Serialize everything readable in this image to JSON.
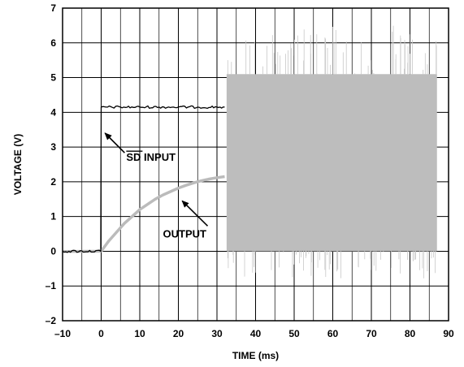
{
  "chart_data": {
    "type": "line",
    "title": "",
    "xlabel": "TIME (ms)",
    "ylabel": "VOLTAGE (V)",
    "xlim": [
      -10,
      90
    ],
    "ylim": [
      -2,
      7
    ],
    "x_ticks": [
      -10,
      0,
      10,
      20,
      30,
      40,
      50,
      60,
      70,
      80,
      90
    ],
    "x_tick_labels": [
      "–10",
      "0",
      "10",
      "20",
      "30",
      "40",
      "50",
      "60",
      "70",
      "80",
      "90"
    ],
    "y_ticks": [
      -2,
      -1,
      0,
      1,
      2,
      3,
      4,
      5,
      6,
      7
    ],
    "y_tick_labels": [
      "–2",
      "–1",
      "0",
      "1",
      "2",
      "3",
      "4",
      "5",
      "6",
      "7"
    ],
    "grid": true,
    "colors": {
      "sd_input": "#000000",
      "output": "#bbbbbb"
    },
    "series": [
      {
        "key": "sd_input",
        "x": [
          -10,
          -0.1,
          0,
          5,
          10,
          15,
          20,
          25,
          30,
          32
        ],
        "y": [
          0,
          0,
          4.15,
          4.15,
          4.15,
          4.15,
          4.15,
          4.15,
          4.15,
          4.15
        ]
      },
      {
        "key": "output",
        "x": [
          -10,
          0,
          2,
          4,
          6,
          8,
          10,
          12,
          14,
          16,
          18,
          20,
          22,
          24,
          26,
          28,
          30,
          32
        ],
        "y": [
          0,
          0,
          0.3,
          0.55,
          0.8,
          1.0,
          1.2,
          1.35,
          1.5,
          1.62,
          1.72,
          1.82,
          1.9,
          1.97,
          2.03,
          2.08,
          2.12,
          2.15
        ],
        "switching_band": {
          "x_start": 32.5,
          "x_end": 87,
          "y_low": 0,
          "y_high": 5.1,
          "spike_peak": 6.5,
          "spike_trough": -0.8
        }
      }
    ],
    "annotations": [
      {
        "text_prefix": "",
        "overline_text": "SD",
        "text_suffix": " INPUT",
        "x": 6.5,
        "y": 2.6,
        "arrow_to": [
          1,
          3.4
        ]
      },
      {
        "text": "OUTPUT",
        "x": 16,
        "y": 0.4,
        "arrow_to": [
          21,
          1.45
        ]
      }
    ]
  }
}
